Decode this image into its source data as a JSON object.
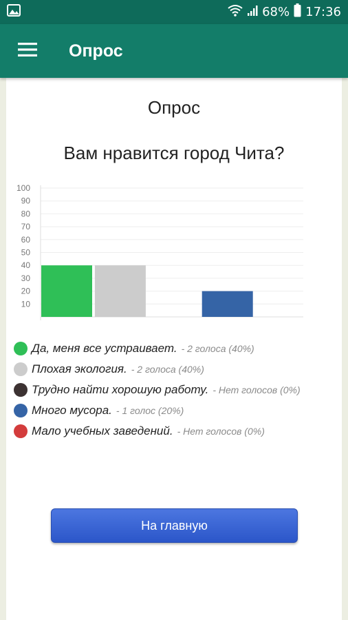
{
  "status_bar": {
    "battery": "68%",
    "time": "17:36"
  },
  "app_bar": {
    "title": "Опрос",
    "menu_icon": "hamburger-menu-icon"
  },
  "poll": {
    "page_title": "Опрос",
    "question": "Вам нравится город Чита?"
  },
  "chart_data": {
    "type": "bar",
    "categories": [
      "Да, меня все устраивает.",
      "Плохая экология.",
      "Трудно найти хорошую работу.",
      "Много мусора.",
      "Мало учебных заведений."
    ],
    "values": [
      40,
      40,
      0,
      20,
      0
    ],
    "colors": [
      "#2fbf57",
      "#cccccc",
      "#3c3232",
      "#3564a6",
      "#d33c3c"
    ],
    "ylim": [
      0,
      100
    ],
    "yticks": [
      "10",
      "20",
      "30",
      "40",
      "50",
      "60",
      "70",
      "80",
      "90",
      "100"
    ],
    "grid": true
  },
  "legend": [
    {
      "label": "Да, меня все устраивает.",
      "count": "- 2 голоса (40%)",
      "color": "#2fbf57"
    },
    {
      "label": "Плохая экология.",
      "count": "- 2 голоса (40%)",
      "color": "#cccccc"
    },
    {
      "label": "Трудно найти хорошую работу.",
      "count": "- Нет голосов (0%)",
      "color": "#3c3232"
    },
    {
      "label": "Много мусора.",
      "count": "- 1 голос (20%)",
      "color": "#3564a6"
    },
    {
      "label": "Мало учебных заведений.",
      "count": "- Нет голосов (0%)",
      "color": "#d33c3c"
    }
  ],
  "home_button": {
    "label": "На главную"
  }
}
